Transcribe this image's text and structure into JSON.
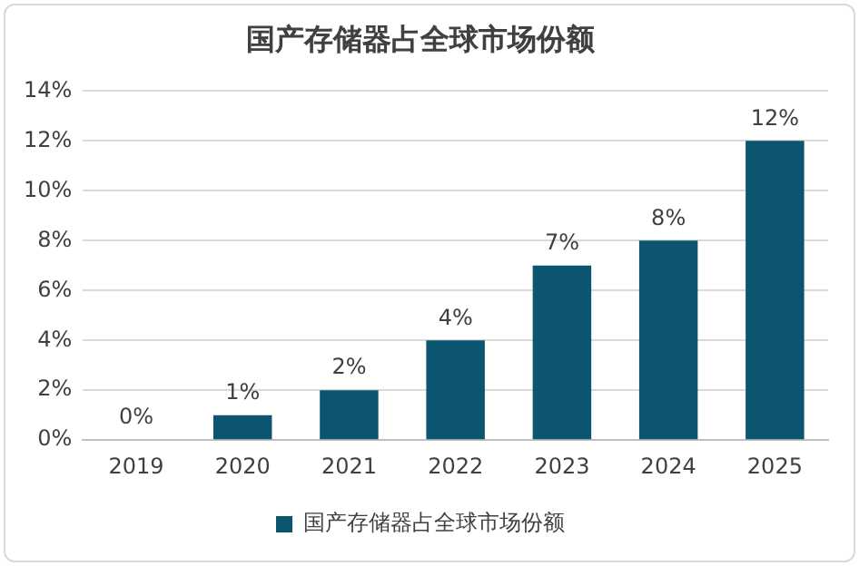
{
  "chart_data": {
    "type": "bar",
    "title": "国产存储器占全球市场份额",
    "categories": [
      "2019",
      "2020",
      "2021",
      "2022",
      "2023",
      "2024",
      "2025"
    ],
    "series": [
      {
        "name": "国产存储器占全球市场份额",
        "color": "#0b5570",
        "values": [
          0,
          1,
          2,
          4,
          7,
          8,
          12
        ]
      }
    ],
    "value_labels": [
      "0%",
      "1%",
      "2%",
      "4%",
      "7%",
      "8%",
      "12%"
    ],
    "ylim": [
      0,
      14
    ],
    "yticks": [
      {
        "value": 0,
        "label": "0%"
      },
      {
        "value": 2,
        "label": "2%"
      },
      {
        "value": 4,
        "label": "4%"
      },
      {
        "value": 6,
        "label": "6%"
      },
      {
        "value": 8,
        "label": "8%"
      },
      {
        "value": 10,
        "label": "10%"
      },
      {
        "value": 12,
        "label": "12%"
      },
      {
        "value": 14,
        "label": "14%"
      }
    ],
    "grid": "y",
    "legend": "bottom"
  }
}
